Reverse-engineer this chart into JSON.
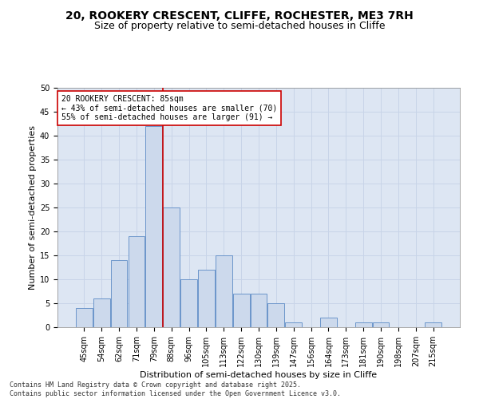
{
  "title": "20, ROOKERY CRESCENT, CLIFFE, ROCHESTER, ME3 7RH",
  "subtitle": "Size of property relative to semi-detached houses in Cliffe",
  "xlabel": "Distribution of semi-detached houses by size in Cliffe",
  "ylabel": "Number of semi-detached properties",
  "categories": [
    "45sqm",
    "54sqm",
    "62sqm",
    "71sqm",
    "79sqm",
    "88sqm",
    "96sqm",
    "105sqm",
    "113sqm",
    "122sqm",
    "130sqm",
    "139sqm",
    "147sqm",
    "156sqm",
    "164sqm",
    "173sqm",
    "181sqm",
    "190sqm",
    "198sqm",
    "207sqm",
    "215sqm"
  ],
  "values": [
    4,
    6,
    14,
    19,
    42,
    25,
    10,
    12,
    15,
    7,
    7,
    5,
    1,
    0,
    2,
    0,
    1,
    1,
    0,
    0,
    1
  ],
  "bar_color": "#ccd9ec",
  "bar_edge_color": "#5b8ac5",
  "property_bin_index": 4,
  "annotation_text": "20 ROOKERY CRESCENT: 85sqm\n← 43% of semi-detached houses are smaller (70)\n55% of semi-detached houses are larger (91) →",
  "annotation_box_color": "#ffffff",
  "annotation_box_edge_color": "#cc0000",
  "redline_color": "#cc0000",
  "footer_text": "Contains HM Land Registry data © Crown copyright and database right 2025.\nContains public sector information licensed under the Open Government Licence v3.0.",
  "ylim": [
    0,
    50
  ],
  "yticks": [
    0,
    5,
    10,
    15,
    20,
    25,
    30,
    35,
    40,
    45,
    50
  ],
  "grid_color": "#c8d4e8",
  "background_color": "#dde6f3",
  "title_fontsize": 10,
  "subtitle_fontsize": 9,
  "axis_label_fontsize": 8,
  "tick_fontsize": 7,
  "annotation_fontsize": 7,
  "footer_fontsize": 6
}
